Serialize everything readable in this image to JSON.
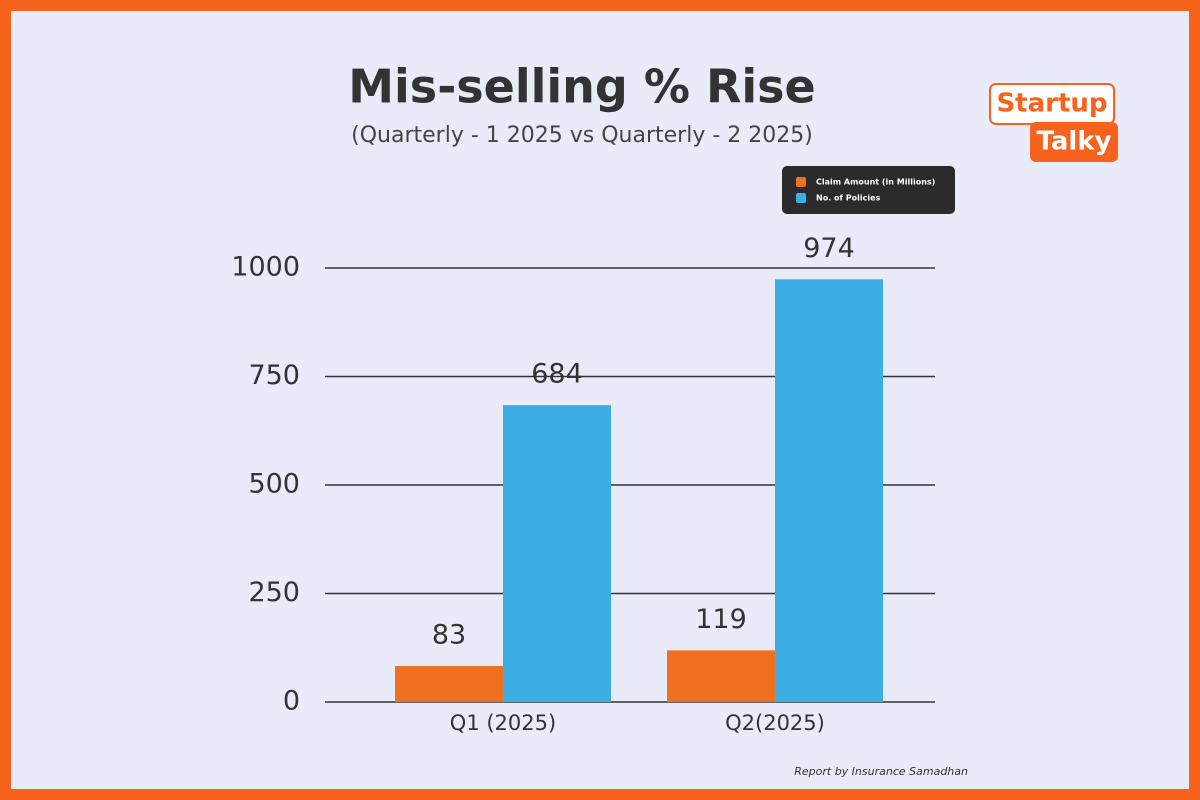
{
  "brand": [
    "Startup",
    "Talky"
  ],
  "chart_data": {
    "type": "bar",
    "title": "Mis-selling % Rise",
    "subtitle": "(Quarterly - 1 2025 vs Quarterly - 2 2025)",
    "source": "Report by Insurance Samadhan",
    "categories": [
      "Q1 (2025)",
      "Q2(2025)"
    ],
    "series": [
      {
        "name": "Claim Amount (in Millions)",
        "color": "#f07022",
        "values": [
          83,
          119
        ]
      },
      {
        "name": "No. of Policies",
        "color": "#3daee3",
        "values": [
          684,
          974
        ]
      }
    ],
    "ylim": [
      0,
      1000
    ],
    "yticks": [
      0,
      250,
      500,
      750,
      1000
    ],
    "grid": true,
    "legend": "top-right"
  }
}
